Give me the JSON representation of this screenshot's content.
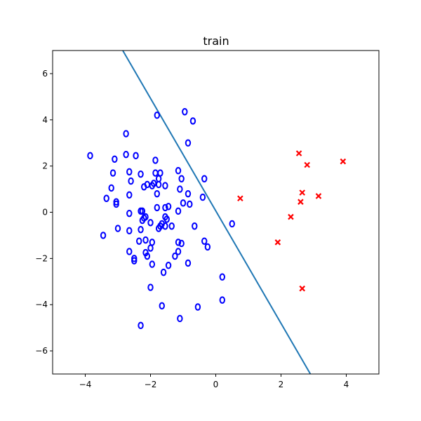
{
  "chart_data": {
    "type": "scatter",
    "title": "train",
    "xlabel": "",
    "ylabel": "",
    "xlim": [
      -5,
      5
    ],
    "ylim": [
      -7,
      7
    ],
    "xticks": [
      -4,
      -2,
      0,
      2,
      4
    ],
    "yticks": [
      -6,
      -4,
      -2,
      0,
      2,
      4,
      6
    ],
    "grid": false,
    "colors": {
      "class_o": "#0000ff",
      "class_x": "#ff0000",
      "boundary": "#1f77b4"
    },
    "series": [
      {
        "marker": "o",
        "color": "#0000ff",
        "points": [
          [
            -3.85,
            2.45
          ],
          [
            -3.1,
            2.3
          ],
          [
            -2.75,
            2.5
          ],
          [
            -2.45,
            2.45
          ],
          [
            -1.85,
            2.25
          ],
          [
            -2.75,
            3.4
          ],
          [
            -1.8,
            4.2
          ],
          [
            -0.95,
            4.35
          ],
          [
            -0.7,
            3.95
          ],
          [
            -0.85,
            3.0
          ],
          [
            -3.15,
            1.7
          ],
          [
            -2.65,
            1.75
          ],
          [
            -2.3,
            1.65
          ],
          [
            -1.85,
            1.7
          ],
          [
            -1.7,
            1.7
          ],
          [
            -2.6,
            1.35
          ],
          [
            -2.2,
            1.1
          ],
          [
            -2.1,
            1.2
          ],
          [
            -1.95,
            1.15
          ],
          [
            -1.9,
            1.25
          ],
          [
            -1.75,
            1.2
          ],
          [
            -1.75,
            1.45
          ],
          [
            -1.55,
            1.15
          ],
          [
            -1.15,
            1.8
          ],
          [
            -1.05,
            1.45
          ],
          [
            -0.35,
            1.45
          ],
          [
            -3.2,
            1.05
          ],
          [
            -2.65,
            0.75
          ],
          [
            -1.8,
            0.8
          ],
          [
            -1.1,
            1.0
          ],
          [
            -0.85,
            0.8
          ],
          [
            -0.4,
            0.65
          ],
          [
            -3.35,
            0.6
          ],
          [
            -3.05,
            0.45
          ],
          [
            -3.05,
            0.35
          ],
          [
            -2.3,
            0.05
          ],
          [
            -2.25,
            0.05
          ],
          [
            -1.8,
            0.2
          ],
          [
            -1.55,
            0.2
          ],
          [
            -1.45,
            0.25
          ],
          [
            -1.15,
            0.05
          ],
          [
            -1.0,
            0.4
          ],
          [
            -0.8,
            0.35
          ],
          [
            -2.65,
            -0.05
          ],
          [
            -2.2,
            -0.25
          ],
          [
            -2.15,
            -0.2
          ],
          [
            -2.0,
            -0.45
          ],
          [
            -1.65,
            -0.5
          ],
          [
            -1.55,
            -0.2
          ],
          [
            -1.5,
            -0.3
          ],
          [
            -1.35,
            -0.6
          ],
          [
            -1.55,
            -0.6
          ],
          [
            -1.7,
            -0.6
          ],
          [
            -1.75,
            -0.7
          ],
          [
            -2.25,
            -0.35
          ],
          [
            -3.0,
            -0.7
          ],
          [
            -3.45,
            -1.0
          ],
          [
            -2.65,
            -0.8
          ],
          [
            -2.3,
            -0.75
          ],
          [
            -0.65,
            -0.6
          ],
          [
            -2.35,
            -1.25
          ],
          [
            -2.15,
            -1.2
          ],
          [
            -1.95,
            -1.3
          ],
          [
            -2.0,
            -1.55
          ],
          [
            -1.15,
            -1.3
          ],
          [
            -1.05,
            -1.35
          ],
          [
            -0.35,
            -1.25
          ],
          [
            -0.25,
            -1.5
          ],
          [
            -2.65,
            -1.7
          ],
          [
            -2.15,
            -1.75
          ],
          [
            -2.1,
            -1.9
          ],
          [
            -2.5,
            -2.0
          ],
          [
            -2.5,
            -2.1
          ],
          [
            -1.15,
            -1.7
          ],
          [
            -1.25,
            -1.9
          ],
          [
            -1.45,
            -2.3
          ],
          [
            -1.95,
            -2.25
          ],
          [
            -0.85,
            -2.2
          ],
          [
            -1.6,
            -2.6
          ],
          [
            0.5,
            -0.5
          ],
          [
            -2.0,
            -3.25
          ],
          [
            -1.65,
            -4.05
          ],
          [
            0.2,
            -2.8
          ],
          [
            0.2,
            -3.8
          ],
          [
            -0.55,
            -4.1
          ],
          [
            -2.3,
            -4.9
          ],
          [
            -1.1,
            -4.6
          ]
        ]
      },
      {
        "marker": "x",
        "color": "#ff0000",
        "points": [
          [
            0.75,
            0.6
          ],
          [
            1.9,
            -1.3
          ],
          [
            2.3,
            -0.2
          ],
          [
            2.55,
            2.55
          ],
          [
            2.8,
            2.05
          ],
          [
            3.9,
            2.2
          ],
          [
            2.65,
            0.85
          ],
          [
            2.6,
            0.45
          ],
          [
            3.15,
            0.7
          ],
          [
            2.65,
            -3.3
          ]
        ]
      }
    ],
    "boundary_line": {
      "color": "#1f77b4",
      "points": [
        [
          -2.85,
          7.0
        ],
        [
          2.9,
          -7.0
        ]
      ]
    }
  }
}
